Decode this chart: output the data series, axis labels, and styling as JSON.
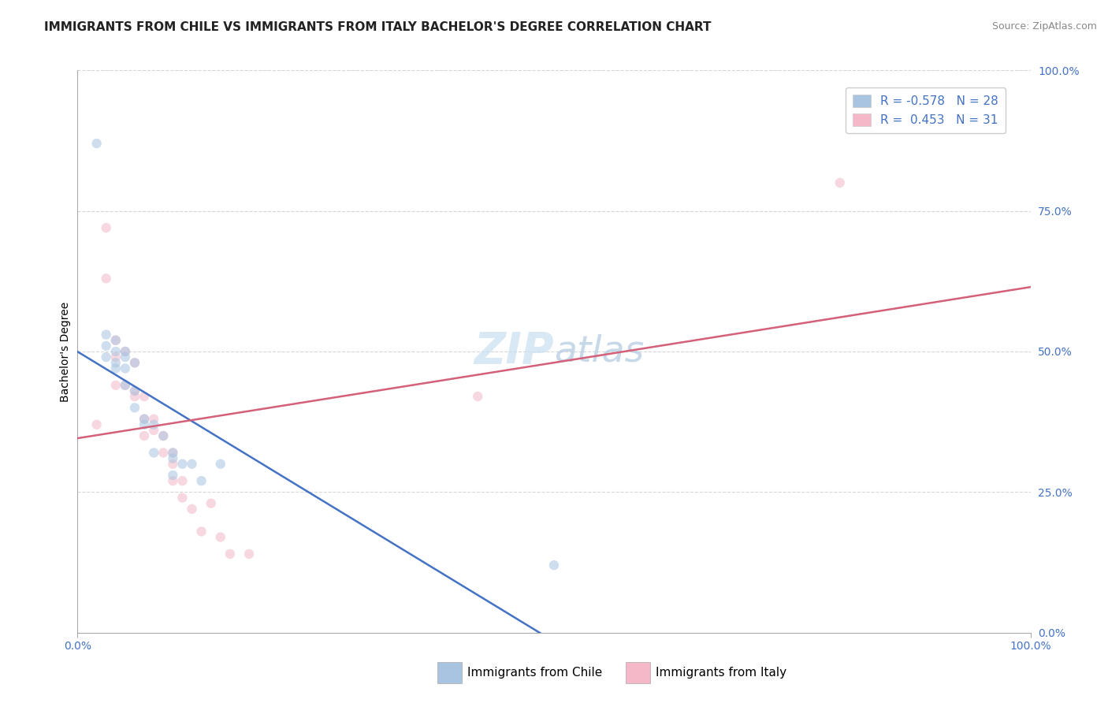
{
  "title": "IMMIGRANTS FROM CHILE VS IMMIGRANTS FROM ITALY BACHELOR'S DEGREE CORRELATION CHART",
  "source": "Source: ZipAtlas.com",
  "ylabel": "Bachelor's Degree",
  "xlim": [
    0.0,
    1.0
  ],
  "ylim": [
    0.0,
    1.0
  ],
  "ytick_labels": [
    "0.0%",
    "25.0%",
    "50.0%",
    "75.0%",
    "100.0%"
  ],
  "ytick_values": [
    0.0,
    0.25,
    0.5,
    0.75,
    1.0
  ],
  "chile_color": "#a8c4e0",
  "chile_line_color": "#4472c4",
  "italy_color": "#f4b8c8",
  "italy_line_color": "#d4607a",
  "chile_R": -0.578,
  "chile_N": 28,
  "italy_R": 0.453,
  "italy_N": 31,
  "legend_label_chile": "Immigrants from Chile",
  "legend_label_italy": "Immigrants from Italy",
  "background_color": "#ffffff",
  "tick_color": "#4472c4",
  "chile_scatter_x": [
    0.02,
    0.03,
    0.03,
    0.04,
    0.04,
    0.04,
    0.04,
    0.05,
    0.05,
    0.05,
    0.05,
    0.06,
    0.06,
    0.06,
    0.07,
    0.07,
    0.08,
    0.08,
    0.09,
    0.1,
    0.1,
    0.1,
    0.11,
    0.12,
    0.13,
    0.15,
    0.5,
    0.03
  ],
  "chile_scatter_y": [
    0.87,
    0.53,
    0.49,
    0.52,
    0.5,
    0.48,
    0.47,
    0.5,
    0.49,
    0.47,
    0.44,
    0.48,
    0.43,
    0.4,
    0.38,
    0.37,
    0.37,
    0.32,
    0.35,
    0.32,
    0.31,
    0.28,
    0.3,
    0.3,
    0.27,
    0.3,
    0.12,
    0.51
  ],
  "italy_scatter_x": [
    0.02,
    0.03,
    0.03,
    0.04,
    0.04,
    0.04,
    0.05,
    0.05,
    0.06,
    0.06,
    0.06,
    0.07,
    0.07,
    0.07,
    0.08,
    0.08,
    0.09,
    0.09,
    0.1,
    0.1,
    0.1,
    0.11,
    0.11,
    0.12,
    0.13,
    0.14,
    0.15,
    0.16,
    0.18,
    0.42,
    0.8
  ],
  "italy_scatter_y": [
    0.37,
    0.72,
    0.63,
    0.52,
    0.49,
    0.44,
    0.5,
    0.44,
    0.48,
    0.43,
    0.42,
    0.42,
    0.38,
    0.35,
    0.38,
    0.36,
    0.35,
    0.32,
    0.32,
    0.3,
    0.27,
    0.27,
    0.24,
    0.22,
    0.18,
    0.23,
    0.17,
    0.14,
    0.14,
    0.42,
    0.8
  ],
  "title_fontsize": 11,
  "axis_label_fontsize": 10,
  "tick_fontsize": 10,
  "legend_fontsize": 11,
  "source_fontsize": 9,
  "watermark_fontsize": 40,
  "scatter_size": 80,
  "scatter_alpha": 0.55,
  "line_width": 1.8,
  "grid_color": "#cccccc",
  "grid_linestyle": "--",
  "grid_alpha": 0.8
}
